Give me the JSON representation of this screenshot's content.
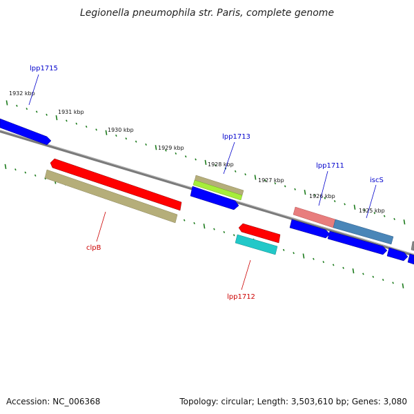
{
  "title": "Legionella pneumophila str. Paris, complete genome",
  "footer": {
    "accession": "Accession: NC_006368",
    "summary": "Topology: circular; Length: 3,503,610 bp; Genes: 3,080"
  },
  "colors": {
    "backbone": "#7a7a7a",
    "tick": "#1a7a1a",
    "forward_label": "#0000cc",
    "reverse_label": "#cc0000"
  },
  "ticks": [
    {
      "label": "1932 kbp"
    },
    {
      "label": "1931 kbp"
    },
    {
      "label": "1930 kbp"
    },
    {
      "label": "1929 kbp"
    },
    {
      "label": "1928 kbp"
    },
    {
      "label": "1927 kbp"
    },
    {
      "label": "1926 kbp"
    },
    {
      "label": "1925 kbp"
    }
  ],
  "genes": [
    {
      "name": "lpp1715",
      "strand": "forward",
      "color": "#0000ff"
    },
    {
      "name": "clpB",
      "strand": "reverse",
      "color": "#ff0000"
    },
    {
      "name": "lpp1713",
      "strand": "forward",
      "color": "#0000ff"
    },
    {
      "name": "lpp1712",
      "strand": "reverse",
      "color": "#ff0000"
    },
    {
      "name": "lpp1711",
      "strand": "forward",
      "color": "#0000ff"
    },
    {
      "name": "iscS",
      "strand": "forward",
      "color": "#0000ff"
    }
  ],
  "features": [
    {
      "name": "clpB-cds",
      "color": "#b5ae7a"
    },
    {
      "name": "lpp1713-feature-tan",
      "color": "#b5ae7a"
    },
    {
      "name": "lpp1713-feature-green",
      "color": "#a6ee3a"
    },
    {
      "name": "lpp1712-cds",
      "color": "#22c8c8"
    },
    {
      "name": "lpp1711-feature",
      "color": "#e87d7d"
    },
    {
      "name": "iscS-feature",
      "color": "#4a86b8"
    },
    {
      "name": "edge-feature",
      "color": "#8a8a8a"
    }
  ]
}
